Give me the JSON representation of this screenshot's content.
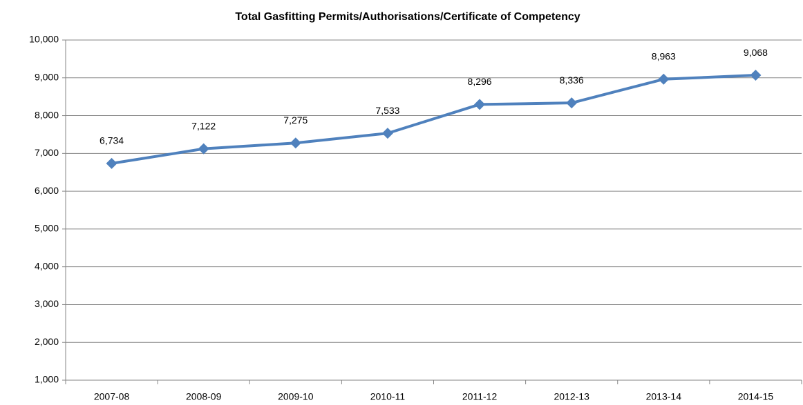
{
  "chart_data": {
    "type": "line",
    "title": "Total Gasfitting Permits/Authorisations/Certificate of Competency",
    "categories": [
      "2007-08",
      "2008-09",
      "2009-10",
      "2010-11",
      "2011-12",
      "2012-13",
      "2013-14",
      "2014-15"
    ],
    "series": [
      {
        "name": "Total Gasfitting Permits/Authorisations/Certificate of Competency",
        "color": "#4f81bd",
        "values": [
          6734,
          7122,
          7275,
          7533,
          8296,
          8336,
          8963,
          9068
        ],
        "value_labels": [
          "6,734",
          "7,122",
          "7,275",
          "7,533",
          "8,296",
          "8,336",
          "8,963",
          "9,068"
        ]
      }
    ],
    "ylim": [
      1000,
      10000
    ],
    "yticks": [
      {
        "value": 1000,
        "label": "1,000"
      },
      {
        "value": 2000,
        "label": "2,000"
      },
      {
        "value": 3000,
        "label": "3,000"
      },
      {
        "value": 4000,
        "label": "4,000"
      },
      {
        "value": 5000,
        "label": "5,000"
      },
      {
        "value": 6000,
        "label": "6,000"
      },
      {
        "value": 7000,
        "label": "7,000"
      },
      {
        "value": 8000,
        "label": "8,000"
      },
      {
        "value": 9000,
        "label": "9,000"
      },
      {
        "value": 10000,
        "label": "10,000"
      }
    ],
    "grid": true
  }
}
